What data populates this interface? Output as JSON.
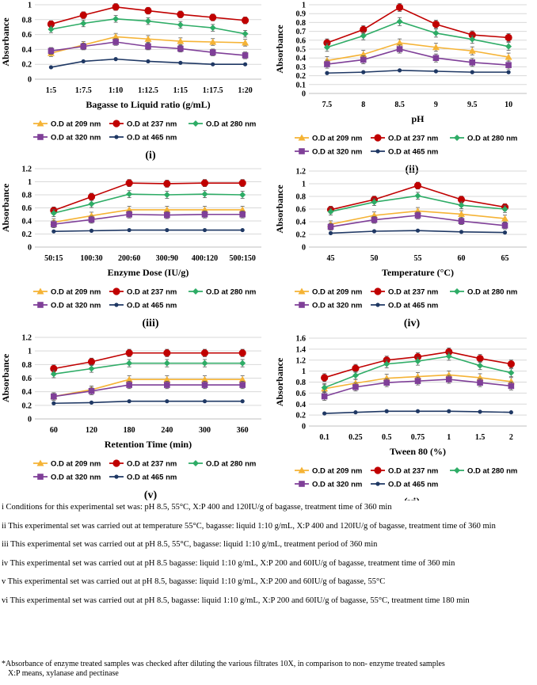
{
  "colors": {
    "od209": "#F5B335",
    "od237": "#C00000",
    "od280": "#2EAC66",
    "od320": "#7F3F98",
    "od465": "#1F3864",
    "gridline": "#d9d9d9"
  },
  "chart_data": [
    {
      "type": "line",
      "panel_label": "(i)",
      "xlabel": "Bagasse to Liquid ratio (g/mL)",
      "ylabel": "Absorbance",
      "categories": [
        "1:5",
        "1:7.5",
        "1:10",
        "1:12.5",
        "1:15",
        "1:17.5",
        "1:20"
      ],
      "ylim": [
        0,
        1
      ],
      "yticks": [
        "0",
        "0.2",
        "0.4",
        "0.6",
        "0.8",
        "1"
      ],
      "series": [
        {
          "name": "O.D at 209 nm",
          "values": [
            0.35,
            0.46,
            0.57,
            0.54,
            0.51,
            0.5,
            0.49
          ]
        },
        {
          "name": "O.D at 237 nm",
          "values": [
            0.74,
            0.86,
            0.97,
            0.92,
            0.87,
            0.83,
            0.79
          ]
        },
        {
          "name": "O.D at 280 nm",
          "values": [
            0.67,
            0.75,
            0.81,
            0.78,
            0.73,
            0.69,
            0.61
          ]
        },
        {
          "name": "O.D at 320 nm",
          "values": [
            0.38,
            0.44,
            0.5,
            0.44,
            0.41,
            0.36,
            0.32
          ]
        },
        {
          "name": "O.D at 465 nm",
          "values": [
            0.16,
            0.24,
            0.27,
            0.24,
            0.22,
            0.2,
            0.2
          ]
        }
      ]
    },
    {
      "type": "line",
      "panel_label": "(ii)",
      "xlabel": "pH",
      "ylabel": "Absorbance",
      "categories": [
        "7.5",
        "8",
        "8.5",
        "9",
        "9.5",
        "10"
      ],
      "ylim": [
        0,
        1
      ],
      "yticks": [
        "0",
        "0.1",
        "0.2",
        "0.3",
        "0.4",
        "0.5",
        "0.6",
        "0.7",
        "0.8",
        "0.9",
        "1"
      ],
      "series": [
        {
          "name": "O.D at 209 nm",
          "values": [
            0.37,
            0.44,
            0.57,
            0.52,
            0.48,
            0.41
          ]
        },
        {
          "name": "O.D at 237 nm",
          "values": [
            0.57,
            0.72,
            0.97,
            0.78,
            0.66,
            0.63
          ]
        },
        {
          "name": "O.D at 280 nm",
          "values": [
            0.52,
            0.65,
            0.81,
            0.68,
            0.61,
            0.53
          ]
        },
        {
          "name": "O.D at 320 nm",
          "values": [
            0.33,
            0.38,
            0.5,
            0.4,
            0.35,
            0.32
          ]
        },
        {
          "name": "O.D at 465 nm",
          "values": [
            0.23,
            0.24,
            0.26,
            0.25,
            0.24,
            0.24
          ]
        }
      ]
    },
    {
      "type": "line",
      "panel_label": "(iii)",
      "xlabel": "Enzyme Dose (IU/g)",
      "ylabel": "Absorbance",
      "categories": [
        "50:15",
        "100:30",
        "200:60",
        "300:90",
        "400:120",
        "500:150"
      ],
      "ylim": [
        0,
        1.2
      ],
      "yticks": [
        "0",
        "0.2",
        "0.4",
        "0.6",
        "0.8",
        "1",
        "1.2"
      ],
      "series": [
        {
          "name": "O.D at 209 nm",
          "values": [
            0.38,
            0.48,
            0.57,
            0.57,
            0.57,
            0.57
          ]
        },
        {
          "name": "O.D at 237 nm",
          "values": [
            0.56,
            0.77,
            0.98,
            0.97,
            0.98,
            0.98
          ]
        },
        {
          "name": "O.D at 280 nm",
          "values": [
            0.52,
            0.66,
            0.81,
            0.8,
            0.81,
            0.8
          ]
        },
        {
          "name": "O.D at 320 nm",
          "values": [
            0.35,
            0.42,
            0.5,
            0.49,
            0.5,
            0.5
          ]
        },
        {
          "name": "O.D at 465 nm",
          "values": [
            0.24,
            0.25,
            0.26,
            0.26,
            0.26,
            0.26
          ]
        }
      ]
    },
    {
      "type": "line",
      "panel_label": "(iv)",
      "xlabel": "Temperature (°C)",
      "ylabel": "Absorbance",
      "categories": [
        "45",
        "50",
        "55",
        "60",
        "65"
      ],
      "ylim": [
        0,
        1.2
      ],
      "yticks": [
        "0",
        "0.2",
        "0.4",
        "0.6",
        "0.8",
        "1",
        "1.2"
      ],
      "series": [
        {
          "name": "O.D at 209 nm",
          "values": [
            0.36,
            0.5,
            0.57,
            0.52,
            0.45
          ]
        },
        {
          "name": "O.D at 237 nm",
          "values": [
            0.59,
            0.75,
            0.97,
            0.75,
            0.63
          ]
        },
        {
          "name": "O.D at 280 nm",
          "values": [
            0.56,
            0.71,
            0.81,
            0.66,
            0.6
          ]
        },
        {
          "name": "O.D at 320 nm",
          "values": [
            0.32,
            0.43,
            0.5,
            0.41,
            0.34
          ]
        },
        {
          "name": "O.D at 465 nm",
          "values": [
            0.22,
            0.25,
            0.26,
            0.24,
            0.23
          ]
        }
      ]
    },
    {
      "type": "line",
      "panel_label": "(v)",
      "xlabel": "Retention Time (min)",
      "ylabel": "Absorbance",
      "categories": [
        "60",
        "120",
        "180",
        "240",
        "300",
        "360"
      ],
      "ylim": [
        0,
        1.2
      ],
      "yticks": [
        "0",
        "0.2",
        "0.4",
        "0.6",
        "0.8",
        "1",
        "1.2"
      ],
      "series": [
        {
          "name": "O.D at 209 nm",
          "values": [
            0.33,
            0.43,
            0.58,
            0.58,
            0.58,
            0.58
          ]
        },
        {
          "name": "O.D at 237 nm",
          "values": [
            0.74,
            0.84,
            0.97,
            0.97,
            0.97,
            0.97
          ]
        },
        {
          "name": "O.D at 280 nm",
          "values": [
            0.66,
            0.74,
            0.82,
            0.82,
            0.82,
            0.82
          ]
        },
        {
          "name": "O.D at 320 nm",
          "values": [
            0.33,
            0.41,
            0.5,
            0.5,
            0.5,
            0.5
          ]
        },
        {
          "name": "O.D at 465 nm",
          "values": [
            0.23,
            0.24,
            0.26,
            0.26,
            0.26,
            0.26
          ]
        }
      ]
    },
    {
      "type": "line",
      "panel_label": "(vi)",
      "xlabel": "Tween 80 (%)",
      "ylabel": "Absorbance",
      "categories": [
        "0.1",
        "0.25",
        "0.5",
        "0.75",
        "1",
        "1.5",
        "2"
      ],
      "ylim": [
        0,
        1.6
      ],
      "yticks": [
        "0",
        "0.2",
        "0.4",
        "0.6",
        "0.8",
        "1",
        "1.2",
        "1.4",
        "1.6"
      ],
      "series": [
        {
          "name": "O.D at 209 nm",
          "values": [
            0.68,
            0.78,
            0.87,
            0.9,
            0.93,
            0.88,
            0.81
          ]
        },
        {
          "name": "O.D at 237 nm",
          "values": [
            0.88,
            1.05,
            1.2,
            1.26,
            1.35,
            1.23,
            1.13
          ]
        },
        {
          "name": "O.D at 280 nm",
          "values": [
            0.7,
            0.92,
            1.13,
            1.18,
            1.27,
            1.1,
            0.97
          ]
        },
        {
          "name": "O.D at 320 nm",
          "values": [
            0.54,
            0.71,
            0.79,
            0.82,
            0.85,
            0.79,
            0.73
          ]
        },
        {
          "name": "O.D at 465 nm",
          "values": [
            0.23,
            0.25,
            0.27,
            0.27,
            0.27,
            0.26,
            0.25
          ]
        }
      ]
    }
  ],
  "notes": [
    "i Conditions for this experimental set was: pH 8.5, 55°C, X:P 400 and 120IU/g of bagasse, treatment time of 360 min",
    "ii This experimental set was carried out at temperature 55°C, bagasse: liquid 1:10 g/mL, X:P 400 and 120IU/g of bagasse, treatment time of 360 min",
    "iii This experimental set was carried out at pH 8.5, 55°C, bagasse: liquid 1:10 g/mL, treatment period of 360 min",
    "iv This experimental set was carried out at pH 8.5 bagasse: liquid 1:10 g/mL, X:P 200 and 60IU/g of bagasse, treatment time of 360 min",
    "v This experimental set was carried out at pH 8.5, bagasse: liquid 1:10 g/mL, X:P 200 and 60IU/g of bagasse, 55°C",
    "vi This experimental set was carried out at pH 8.5, bagasse: liquid 1:10 g/mL, X:P 200 and 60IU/g of bagasse, 55°C, treatment time 180 min"
  ],
  "footer": [
    "*Absorbance of enzyme treated samples was checked after diluting the various filtrates 10X, in comparison to non- enzyme treated samples",
    "X:P means, xylanase and pectinase"
  ]
}
